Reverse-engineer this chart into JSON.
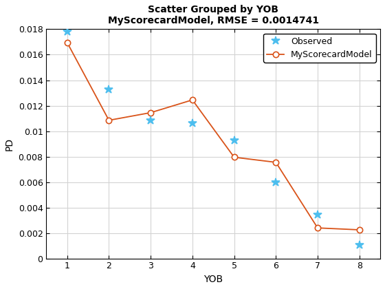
{
  "title_line1": "Scatter Grouped by YOB",
  "title_line2": "MyScorecardModel, RMSE = 0.0014741",
  "xlabel": "YOB",
  "ylabel": "PD",
  "xob": [
    1,
    2,
    3,
    4,
    5,
    6,
    7,
    8
  ],
  "observed": [
    0.0178,
    0.01325,
    0.01085,
    0.01065,
    0.0093,
    0.006,
    0.00345,
    0.00105
  ],
  "model": [
    0.01695,
    0.01085,
    0.01145,
    0.01245,
    0.00795,
    0.00755,
    0.0024,
    0.00225
  ],
  "observed_color": "#4DBEEE",
  "model_color": "#D95319",
  "observed_marker": "*",
  "model_marker": "o",
  "observed_label": "Observed",
  "model_label": "MyScorecardModel",
  "ylim": [
    0,
    0.018
  ],
  "xlim": [
    0.5,
    8.5
  ],
  "ytick_vals": [
    0,
    0.002,
    0.004,
    0.006,
    0.008,
    0.01,
    0.012,
    0.014,
    0.016,
    0.018
  ],
  "ytick_labels": [
    "0",
    "0.002",
    "0.004",
    "0.006",
    "0.008",
    "0.01",
    "0.012",
    "0.014",
    "0.016",
    "0.018"
  ],
  "xticks": [
    1,
    2,
    3,
    4,
    5,
    6,
    7,
    8
  ],
  "bg_color": "#ffffff",
  "grid_color": "#d3d3d3",
  "title_fontsize": 10,
  "label_fontsize": 10,
  "tick_fontsize": 9
}
